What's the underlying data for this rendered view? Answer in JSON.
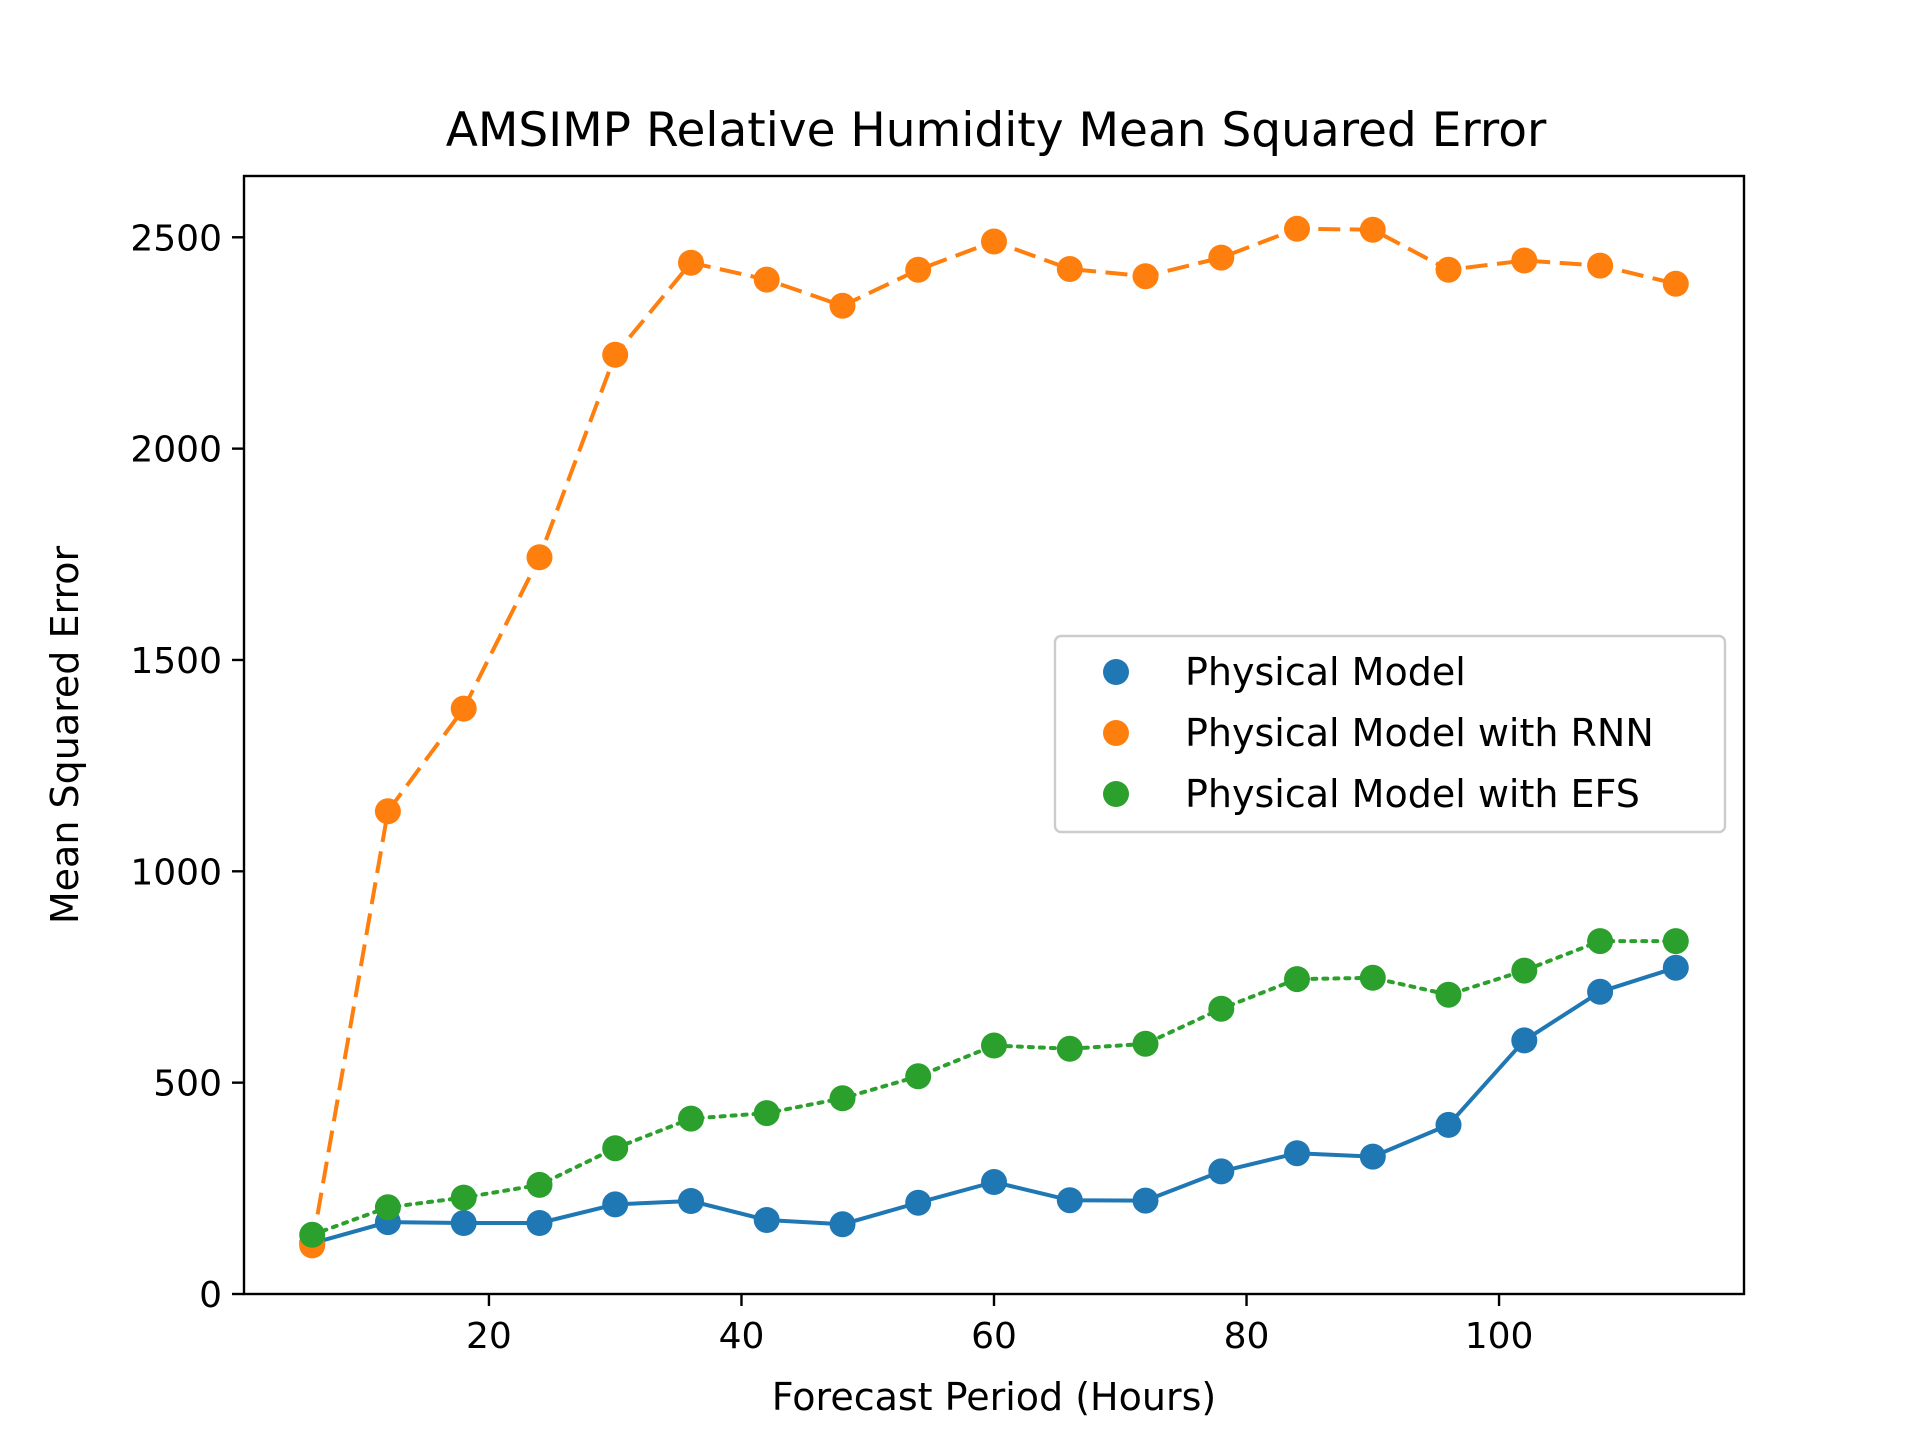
{
  "chart_data": {
    "type": "line",
    "title": "AMSIMP Relative Humidity Mean Squared Error",
    "xlabel": "Forecast Period (Hours)",
    "ylabel": "Mean Squared Error",
    "xlim": [
      0.6,
      119.4
    ],
    "ylim": [
      0,
      2645
    ],
    "xticks": [
      20,
      40,
      60,
      80,
      100
    ],
    "yticks": [
      0,
      500,
      1000,
      1500,
      2000,
      2500
    ],
    "grid": false,
    "legend_position": "center-right",
    "x": [
      6,
      12,
      18,
      24,
      30,
      36,
      42,
      48,
      54,
      60,
      66,
      72,
      78,
      84,
      90,
      96,
      102,
      108,
      114
    ],
    "series": [
      {
        "name": "Physical Model",
        "color": "#1f77b4",
        "line_style": "solid",
        "values": [
          120,
          170,
          168,
          168,
          212,
          220,
          175,
          165,
          216,
          265,
          222,
          221,
          290,
          333,
          325,
          400,
          600,
          715,
          772
        ]
      },
      {
        "name": "Physical Model with RNN",
        "color": "#ff7f0e",
        "line_style": "dashed",
        "values": [
          115,
          1142,
          1385,
          1743,
          2222,
          2440,
          2400,
          2338,
          2423,
          2490,
          2425,
          2408,
          2452,
          2520,
          2518,
          2423,
          2445,
          2433,
          2390
        ]
      },
      {
        "name": "Physical Model with EFS",
        "color": "#2ca02c",
        "line_style": "dotted",
        "values": [
          140,
          205,
          228,
          258,
          345,
          415,
          428,
          463,
          515,
          588,
          580,
          592,
          675,
          745,
          748,
          708,
          765,
          835,
          835
        ]
      }
    ]
  }
}
